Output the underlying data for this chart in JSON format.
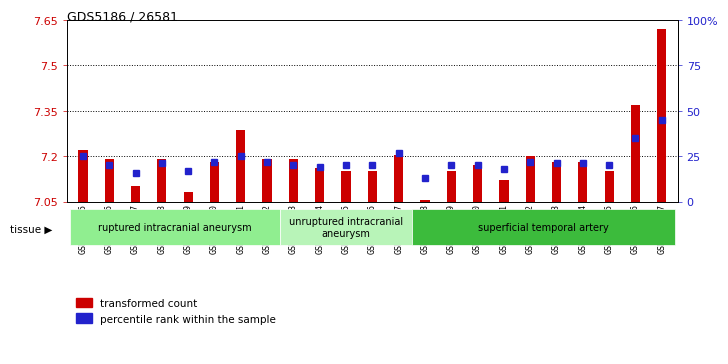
{
  "title": "GDS5186 / 26581",
  "samples": [
    "GSM1306885",
    "GSM1306886",
    "GSM1306887",
    "GSM1306888",
    "GSM1306889",
    "GSM1306890",
    "GSM1306891",
    "GSM1306892",
    "GSM1306893",
    "GSM1306894",
    "GSM1306895",
    "GSM1306896",
    "GSM1306897",
    "GSM1306898",
    "GSM1306899",
    "GSM1306900",
    "GSM1306901",
    "GSM1306902",
    "GSM1306903",
    "GSM1306904",
    "GSM1306905",
    "GSM1306906",
    "GSM1306907"
  ],
  "red_values": [
    7.22,
    7.19,
    7.1,
    7.19,
    7.08,
    7.18,
    7.285,
    7.19,
    7.19,
    7.16,
    7.15,
    7.15,
    7.205,
    7.055,
    7.15,
    7.17,
    7.12,
    7.2,
    7.18,
    7.18,
    7.15,
    7.37,
    7.62
  ],
  "blue_values": [
    25,
    20,
    16,
    21,
    17,
    22,
    25,
    22,
    20,
    19,
    20,
    20,
    27,
    13,
    20,
    20,
    18,
    22,
    21,
    21,
    20,
    35,
    45
  ],
  "ylim_left": [
    7.05,
    7.65
  ],
  "ylim_right": [
    0,
    100
  ],
  "yticks_left": [
    7.05,
    7.2,
    7.35,
    7.5,
    7.65
  ],
  "yticks_right": [
    0,
    25,
    50,
    75,
    100
  ],
  "ytick_labels_right": [
    "0",
    "25",
    "50",
    "75",
    "100%"
  ],
  "hlines": [
    7.2,
    7.35,
    7.5
  ],
  "groups": [
    {
      "label": "ruptured intracranial aneurysm",
      "start": 0,
      "end": 8,
      "color": "#90EE90"
    },
    {
      "label": "unruptured intracranial\naneurysm",
      "start": 8,
      "end": 13,
      "color": "#b8f4b8"
    },
    {
      "label": "superficial temporal artery",
      "start": 13,
      "end": 23,
      "color": "#3CBB3C"
    }
  ],
  "red_color": "#CC0000",
  "blue_color": "#2222CC",
  "bar_width": 0.35,
  "blue_marker_size": 4.5
}
